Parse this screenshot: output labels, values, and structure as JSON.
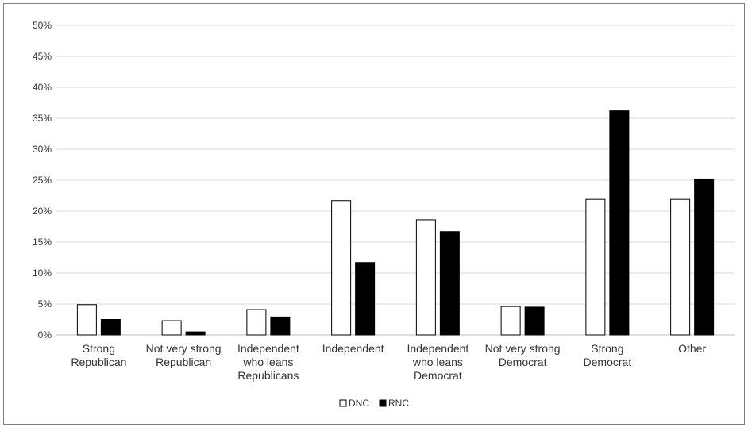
{
  "chart_data": {
    "type": "bar",
    "title": "",
    "xlabel": "",
    "ylabel": "",
    "categories": [
      [
        "Strong",
        "Republican"
      ],
      [
        "Not very strong",
        "Republican"
      ],
      [
        "Independent",
        "who leans",
        "Republicans"
      ],
      [
        "Independent"
      ],
      [
        "Independent",
        "who leans",
        "Democrat"
      ],
      [
        "Not very strong",
        "Democrat"
      ],
      [
        "Strong",
        "Democrat"
      ],
      [
        "Other"
      ]
    ],
    "series": [
      {
        "name": "DNC",
        "fill": "#ffffff",
        "stroke": "#000000",
        "values": [
          4.9,
          2.3,
          4.1,
          21.7,
          18.6,
          4.6,
          21.9,
          21.9
        ]
      },
      {
        "name": "RNC",
        "fill": "#000000",
        "stroke": "#000000",
        "values": [
          2.5,
          0.5,
          2.9,
          11.7,
          16.7,
          4.5,
          36.2,
          25.2
        ]
      }
    ],
    "ylim": [
      0,
      50
    ],
    "yticks": [
      0,
      5,
      10,
      15,
      20,
      25,
      30,
      35,
      40,
      45,
      50
    ],
    "ytick_labels": [
      "0%",
      "5%",
      "10%",
      "15%",
      "20%",
      "25%",
      "30%",
      "35%",
      "40%",
      "45%",
      "50%"
    ],
    "grid": true,
    "grid_color": "#d9d9d9",
    "legend": "bottom-center"
  }
}
